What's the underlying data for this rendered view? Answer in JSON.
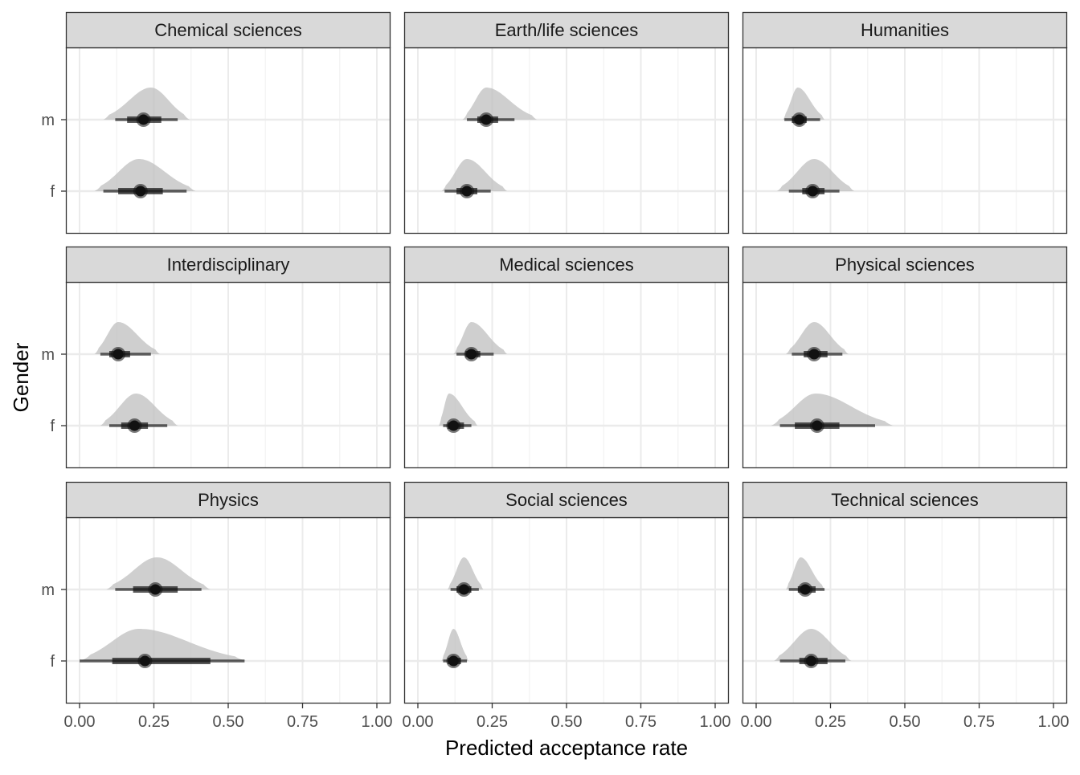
{
  "chart_data": {
    "type": "halfeye",
    "xlabel": "Predicted acceptance rate",
    "ylabel": "Gender",
    "xlim": [
      0,
      1
    ],
    "x_ticks": [
      "0.00",
      "0.25",
      "0.50",
      "0.75",
      "1.00"
    ],
    "y_categories": [
      "m",
      "f"
    ],
    "grid": true,
    "panels": [
      {
        "title": "Chemical sciences",
        "series": [
          {
            "category": "m",
            "median": 0.215,
            "q66": [
              0.16,
              0.275
            ],
            "q95": [
              0.12,
              0.33
            ],
            "range": [
              0.08,
              0.37
            ],
            "mode": 0.24
          },
          {
            "category": "f",
            "median": 0.205,
            "q66": [
              0.13,
              0.28
            ],
            "q95": [
              0.08,
              0.36
            ],
            "range": [
              0.05,
              0.39
            ],
            "mode": 0.2
          }
        ]
      },
      {
        "title": "Earth/life sciences",
        "series": [
          {
            "category": "m",
            "median": 0.23,
            "q66": [
              0.2,
              0.27
            ],
            "q95": [
              0.165,
              0.325
            ],
            "range": [
              0.15,
              0.4
            ],
            "mode": 0.23
          },
          {
            "category": "f",
            "median": 0.165,
            "q66": [
              0.13,
              0.2
            ],
            "q95": [
              0.09,
              0.245
            ],
            "range": [
              0.08,
              0.3
            ],
            "mode": 0.165
          }
        ]
      },
      {
        "title": "Humanities",
        "series": [
          {
            "category": "m",
            "median": 0.145,
            "q66": [
              0.12,
              0.17
            ],
            "q95": [
              0.095,
              0.215
            ],
            "range": [
              0.09,
              0.23
            ],
            "mode": 0.14
          },
          {
            "category": "f",
            "median": 0.19,
            "q66": [
              0.155,
              0.23
            ],
            "q95": [
              0.11,
              0.28
            ],
            "range": [
              0.07,
              0.33
            ],
            "mode": 0.195
          }
        ]
      },
      {
        "title": "Interdisciplinary",
        "series": [
          {
            "category": "m",
            "median": 0.13,
            "q66": [
              0.1,
              0.17
            ],
            "q95": [
              0.07,
              0.24
            ],
            "range": [
              0.05,
              0.27
            ],
            "mode": 0.13
          },
          {
            "category": "f",
            "median": 0.185,
            "q66": [
              0.14,
              0.23
            ],
            "q95": [
              0.1,
              0.295
            ],
            "range": [
              0.07,
              0.33
            ],
            "mode": 0.19
          }
        ]
      },
      {
        "title": "Medical sciences",
        "series": [
          {
            "category": "m",
            "median": 0.18,
            "q66": [
              0.16,
              0.21
            ],
            "q95": [
              0.13,
              0.255
            ],
            "range": [
              0.12,
              0.3
            ],
            "mode": 0.18
          },
          {
            "category": "f",
            "median": 0.12,
            "q66": [
              0.1,
              0.155
            ],
            "q95": [
              0.085,
              0.18
            ],
            "range": [
              0.07,
              0.2
            ],
            "mode": 0.105
          }
        ]
      },
      {
        "title": "Physical sciences",
        "series": [
          {
            "category": "m",
            "median": 0.195,
            "q66": [
              0.16,
              0.24
            ],
            "q95": [
              0.12,
              0.29
            ],
            "range": [
              0.1,
              0.31
            ],
            "mode": 0.195
          },
          {
            "category": "f",
            "median": 0.205,
            "q66": [
              0.13,
              0.28
            ],
            "q95": [
              0.08,
              0.4
            ],
            "range": [
              0.05,
              0.46
            ],
            "mode": 0.2
          }
        ]
      },
      {
        "title": "Physics",
        "series": [
          {
            "category": "m",
            "median": 0.255,
            "q66": [
              0.18,
              0.33
            ],
            "q95": [
              0.12,
              0.41
            ],
            "range": [
              0.09,
              0.44
            ],
            "mode": 0.26
          },
          {
            "category": "f",
            "median": 0.22,
            "q66": [
              0.11,
              0.44
            ],
            "q95": [
              0.0,
              0.555
            ],
            "range": [
              0.0,
              0.56
            ],
            "mode": 0.2
          }
        ]
      },
      {
        "title": "Social sciences",
        "series": [
          {
            "category": "m",
            "median": 0.155,
            "q66": [
              0.13,
              0.18
            ],
            "q95": [
              0.11,
              0.205
            ],
            "range": [
              0.1,
              0.22
            ],
            "mode": 0.155
          },
          {
            "category": "f",
            "median": 0.12,
            "q66": [
              0.1,
              0.145
            ],
            "q95": [
              0.085,
              0.165
            ],
            "range": [
              0.08,
              0.17
            ],
            "mode": 0.12
          }
        ]
      },
      {
        "title": "Technical sciences",
        "series": [
          {
            "category": "m",
            "median": 0.165,
            "q66": [
              0.14,
              0.2
            ],
            "q95": [
              0.11,
              0.23
            ],
            "range": [
              0.1,
              0.23
            ],
            "mode": 0.15
          },
          {
            "category": "f",
            "median": 0.185,
            "q66": [
              0.145,
              0.24
            ],
            "q95": [
              0.08,
              0.3
            ],
            "range": [
              0.06,
              0.32
            ],
            "mode": 0.185
          }
        ]
      }
    ]
  },
  "colors": {
    "strip_fill": "#d9d9d9",
    "panel_border": "#333333",
    "grid_major": "#ebebeb",
    "density_fill": "#bdbdbd",
    "interval": "#111111",
    "point": "#111111",
    "text": "#1a1a1a",
    "axis_text": "#4d4d4d"
  }
}
